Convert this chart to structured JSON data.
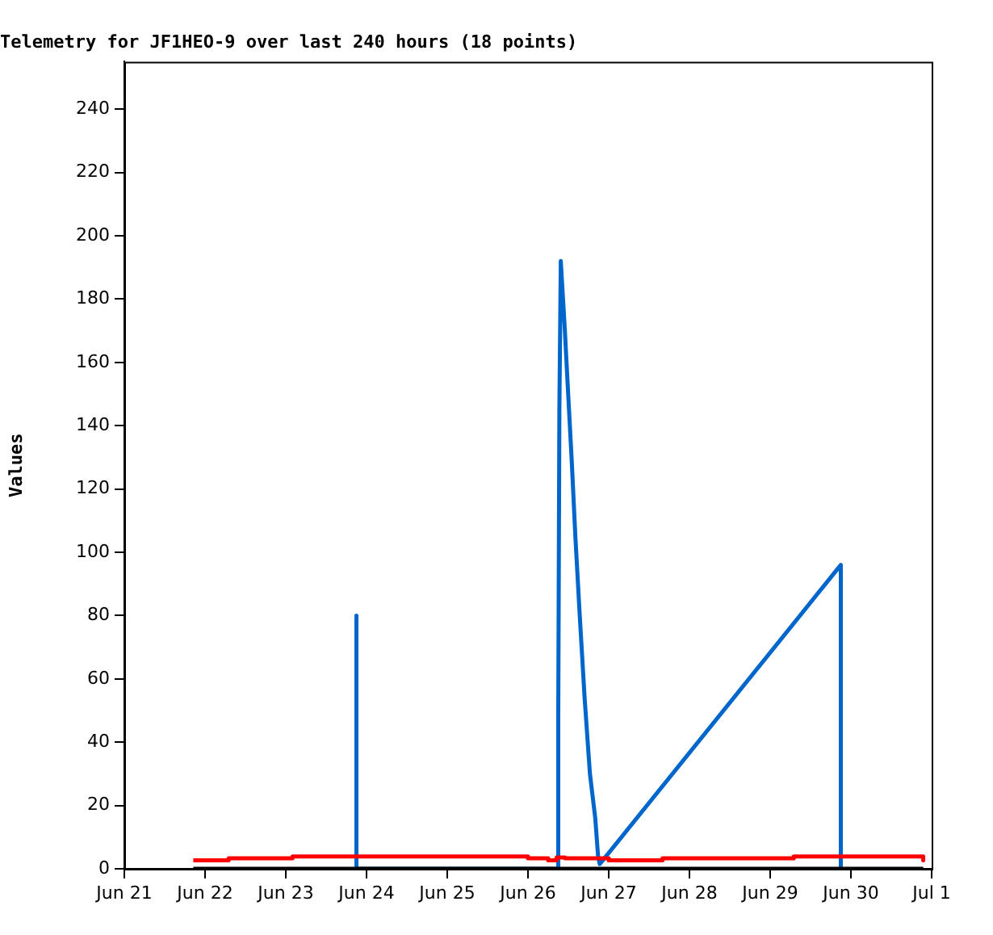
{
  "chart_data": {
    "type": "line",
    "title": "Telemetry for JF1HEO-9 over last 240 hours (18 points)",
    "ylabel": "Values",
    "xlim": [
      "--06-21",
      "--07-01"
    ],
    "xticks": [
      {
        "value": "--06-21",
        "label": "Jun 21"
      },
      {
        "value": "--06-22",
        "label": "Jun 22"
      },
      {
        "value": "--06-23",
        "label": "Jun 23"
      },
      {
        "value": "--06-24",
        "label": "Jun 24"
      },
      {
        "value": "--06-25",
        "label": "Jun 25"
      },
      {
        "value": "--06-26",
        "label": "Jun 26"
      },
      {
        "value": "--06-27",
        "label": "Jun 27"
      },
      {
        "value": "--06-28",
        "label": "Jun 28"
      },
      {
        "value": "--06-29",
        "label": "Jun 29"
      },
      {
        "value": "--06-30",
        "label": "Jun 30"
      },
      {
        "value": "--07-01",
        "label": "Jul 1"
      }
    ],
    "ylim": [
      0,
      255
    ],
    "yticks": [
      0,
      20,
      40,
      60,
      80,
      100,
      120,
      140,
      160,
      180,
      200,
      220,
      240
    ],
    "grid": false,
    "legend": false,
    "marker": "none",
    "line_style": "solid",
    "series": [
      {
        "color": "#000000",
        "x": [
          "--06-21T20:30",
          "--06-30T21:30"
        ],
        "values": [
          0,
          0
        ]
      },
      {
        "color": "#ff0000",
        "x": [
          "--06-21T20:30",
          "--06-22T07:00",
          "--06-22T07:00",
          "--06-23T02:00",
          "--06-23T02:00",
          "--06-26T00:00",
          "--06-26T00:00",
          "--06-26T06:00",
          "--06-26T06:00",
          "--06-26T08:30",
          "--06-26T08:30",
          "--06-26T11:00",
          "--06-26T11:00",
          "--06-27T00:00",
          "--06-27T00:00",
          "--06-27T16:00",
          "--06-27T16:00",
          "--06-29T07:00",
          "--06-29T07:00",
          "--06-30T21:30",
          "--06-30T21:30"
        ],
        "values": [
          2.7,
          2.7,
          3.3,
          3.3,
          3.9,
          3.9,
          3.3,
          3.3,
          2.7,
          2.7,
          3.6,
          3.6,
          3.3,
          3.3,
          2.7,
          2.7,
          3.3,
          3.3,
          3.9,
          3.9,
          2.7
        ]
      },
      {
        "color": "#0066cc",
        "x": [
          "--06-23T21:00",
          "--06-23T21:00",
          "--06-23T21:00",
          "--06-26T09:00",
          "--06-26T09:00",
          "--06-26T09:20",
          "--06-26T09:45",
          "--06-26T10:55",
          "--06-26T11:45",
          "--06-26T13:00",
          "--06-26T14:05",
          "--06-26T15:20",
          "--06-26T16:50",
          "--06-26T18:25",
          "--06-26T20:00",
          "--06-26T20:50",
          "--06-26T21:20",
          "--06-29T21:00",
          "--06-29T21:00"
        ],
        "values": [
          0,
          80,
          0,
          0,
          48,
          145,
          192,
          171,
          154,
          129,
          105,
          81,
          54,
          30,
          16,
          4,
          1.5,
          96,
          0
        ]
      }
    ]
  }
}
